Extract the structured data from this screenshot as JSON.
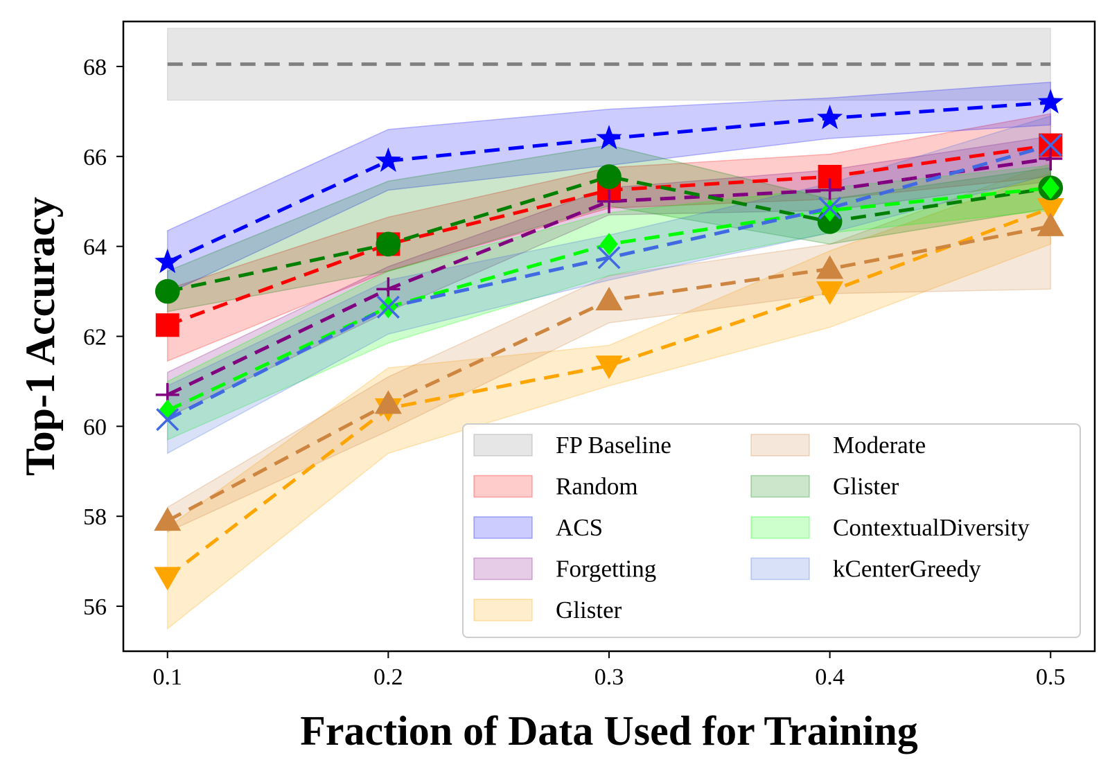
{
  "chart_data": {
    "type": "line",
    "xlabel": "Fraction of Data Used for Training",
    "ylabel": "Top-1 Accuracy",
    "xlim": [
      0.08,
      0.52
    ],
    "ylim": [
      55.0,
      69.0
    ],
    "xticks": [
      0.1,
      0.2,
      0.3,
      0.4,
      0.5
    ],
    "xtick_labels": [
      "0.1",
      "0.2",
      "0.3",
      "0.4",
      "0.5"
    ],
    "yticks": [
      56,
      58,
      60,
      62,
      64,
      66,
      68
    ],
    "ytick_labels": [
      "56",
      "58",
      "60",
      "62",
      "64",
      "66",
      "68"
    ],
    "grid": false,
    "legend_placement": "lower-right",
    "legend_columns": 2,
    "x": [
      0.1,
      0.2,
      0.3,
      0.4,
      0.5
    ],
    "baseline": {
      "name": "FP Baseline",
      "value": 68.05,
      "lower": 67.25,
      "upper": 68.85,
      "color": "#808080"
    },
    "series": [
      {
        "name": "Random",
        "color": "#ff0000",
        "marker": "square",
        "values": [
          62.25,
          64.05,
          65.25,
          65.55,
          66.25
        ],
        "lower": [
          61.45,
          63.45,
          64.85,
          65.05,
          65.55
        ],
        "upper": [
          63.05,
          64.65,
          65.75,
          66.05,
          66.95
        ]
      },
      {
        "name": "ACS",
        "color": "#0000ff",
        "marker": "star",
        "values": [
          63.65,
          65.9,
          66.4,
          66.85,
          67.2
        ],
        "lower": [
          62.95,
          65.25,
          65.8,
          66.4,
          66.7
        ],
        "upper": [
          64.35,
          66.6,
          67.05,
          67.3,
          67.65
        ]
      },
      {
        "name": "Forgetting",
        "color": "#800080",
        "marker": "plus",
        "values": [
          60.7,
          63.05,
          65.0,
          65.25,
          65.95
        ],
        "lower": [
          60.2,
          62.55,
          64.7,
          64.8,
          65.45
        ],
        "upper": [
          61.2,
          63.55,
          65.3,
          65.7,
          66.45
        ]
      },
      {
        "name": "Glister",
        "color": "#ffa500",
        "marker": "triangle-down",
        "values": [
          56.65,
          60.4,
          61.35,
          63.0,
          64.85
        ],
        "lower": [
          55.5,
          59.4,
          60.9,
          62.2,
          64.05
        ],
        "upper": [
          57.75,
          61.3,
          61.8,
          63.9,
          65.65
        ]
      },
      {
        "name": "Moderate",
        "color": "#cd853f",
        "marker": "triangle-up",
        "values": [
          57.9,
          60.5,
          62.8,
          63.5,
          64.45
        ],
        "lower": [
          57.65,
          59.9,
          62.3,
          62.95,
          63.05
        ],
        "upper": [
          58.2,
          61.1,
          63.35,
          64.05,
          65.85
        ]
      },
      {
        "name": "Glister",
        "color": "#008000",
        "marker": "circle",
        "values": [
          63.0,
          64.05,
          65.55,
          64.55,
          65.3
        ],
        "lower": [
          62.55,
          63.45,
          64.9,
          64.05,
          64.85
        ],
        "upper": [
          63.45,
          65.45,
          66.25,
          65.05,
          65.75
        ]
      },
      {
        "name": "ContextualDiversity",
        "color": "#00ff00",
        "marker": "diamond",
        "values": [
          60.35,
          62.65,
          64.05,
          64.8,
          65.3
        ],
        "lower": [
          59.7,
          61.85,
          63.35,
          64.3,
          64.8
        ],
        "upper": [
          61.0,
          63.45,
          64.75,
          65.3,
          65.8
        ]
      },
      {
        "name": "kCenterGreedy",
        "color": "#4169e1",
        "marker": "x",
        "values": [
          60.15,
          62.65,
          63.75,
          64.85,
          66.25
        ],
        "lower": [
          59.4,
          62.05,
          63.25,
          64.3,
          65.6
        ],
        "upper": [
          60.9,
          63.25,
          64.25,
          65.4,
          66.9
        ]
      }
    ]
  }
}
